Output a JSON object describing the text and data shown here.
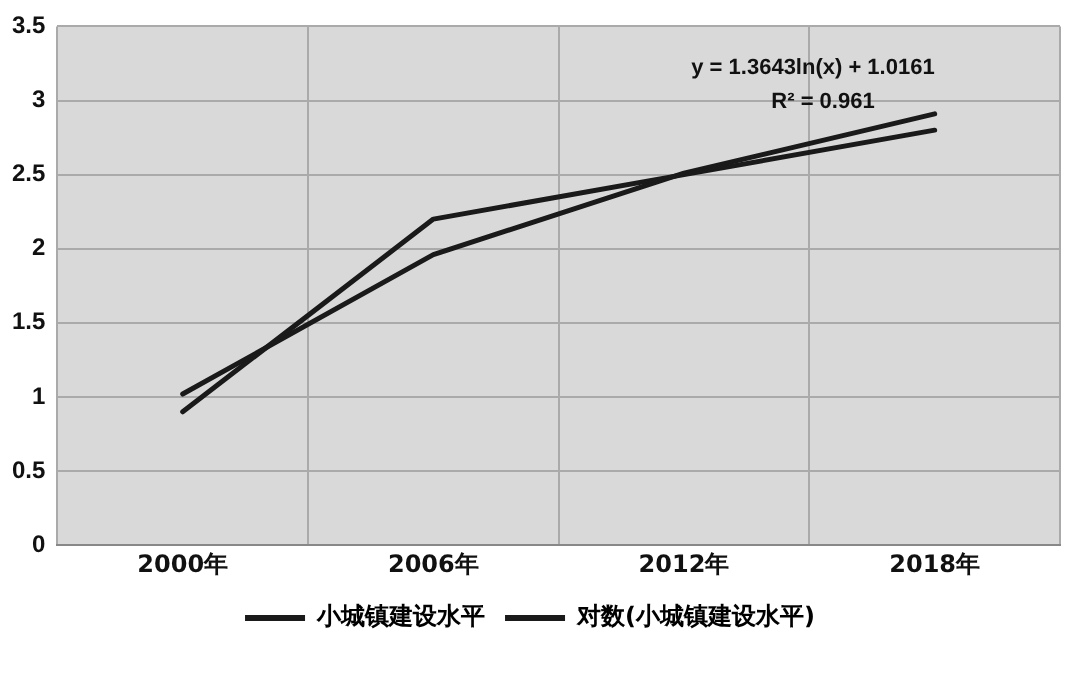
{
  "chart_data": {
    "type": "line",
    "categories": [
      "2000年",
      "2006年",
      "2012年",
      "2018年"
    ],
    "series": [
      {
        "name": "小城镇建设水平",
        "color": "#1a1a1a",
        "values": [
          0.9,
          2.2,
          2.5,
          2.8
        ]
      },
      {
        "name": "对数(小城镇建设水平)",
        "color": "#1a1a1a",
        "values": [
          1.02,
          1.96,
          2.51,
          2.91
        ]
      }
    ],
    "ylim": [
      0,
      3.5
    ],
    "yticks": [
      0,
      0.5,
      1,
      1.5,
      2,
      2.5,
      3,
      3.5
    ],
    "grid": true,
    "legend": "bottom",
    "marker": "none",
    "line_style": "solid",
    "annotations": [
      "y = 1.3643ln(x) + 1.0161",
      "R² = 0.961"
    ]
  }
}
